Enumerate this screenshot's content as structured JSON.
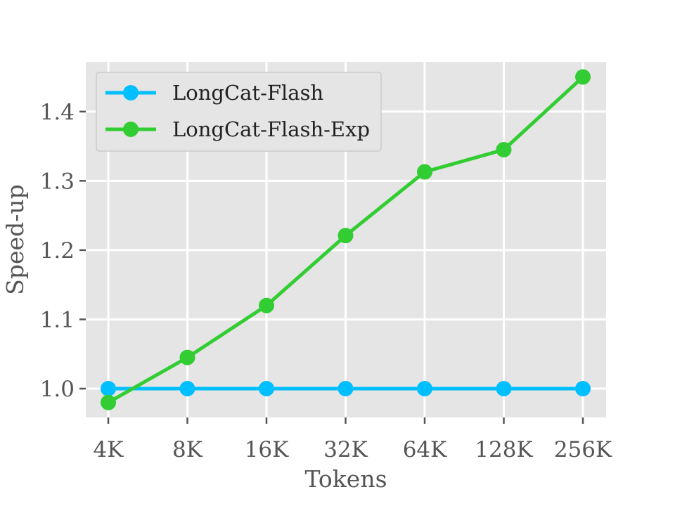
{
  "chart_data": {
    "type": "line",
    "title": "",
    "xlabel": "Tokens",
    "ylabel": "Speed-up",
    "categories": [
      "4K",
      "8K",
      "16K",
      "32K",
      "64K",
      "128K",
      "256K"
    ],
    "ylim": [
      0.96,
      1.46
    ],
    "yticks": [
      "1.0",
      "1.1",
      "1.2",
      "1.3",
      "1.4"
    ],
    "grid": true,
    "legend_position": "top-left",
    "series": [
      {
        "name": "LongCat-Flash",
        "color": "#00bfff",
        "values": [
          1.0,
          1.0,
          1.0,
          1.0,
          1.0,
          1.0,
          1.0
        ]
      },
      {
        "name": "LongCat-Flash-Exp",
        "color": "#32cd32",
        "values": [
          0.98,
          1.045,
          1.12,
          1.221,
          1.313,
          1.345,
          1.45
        ]
      }
    ]
  }
}
